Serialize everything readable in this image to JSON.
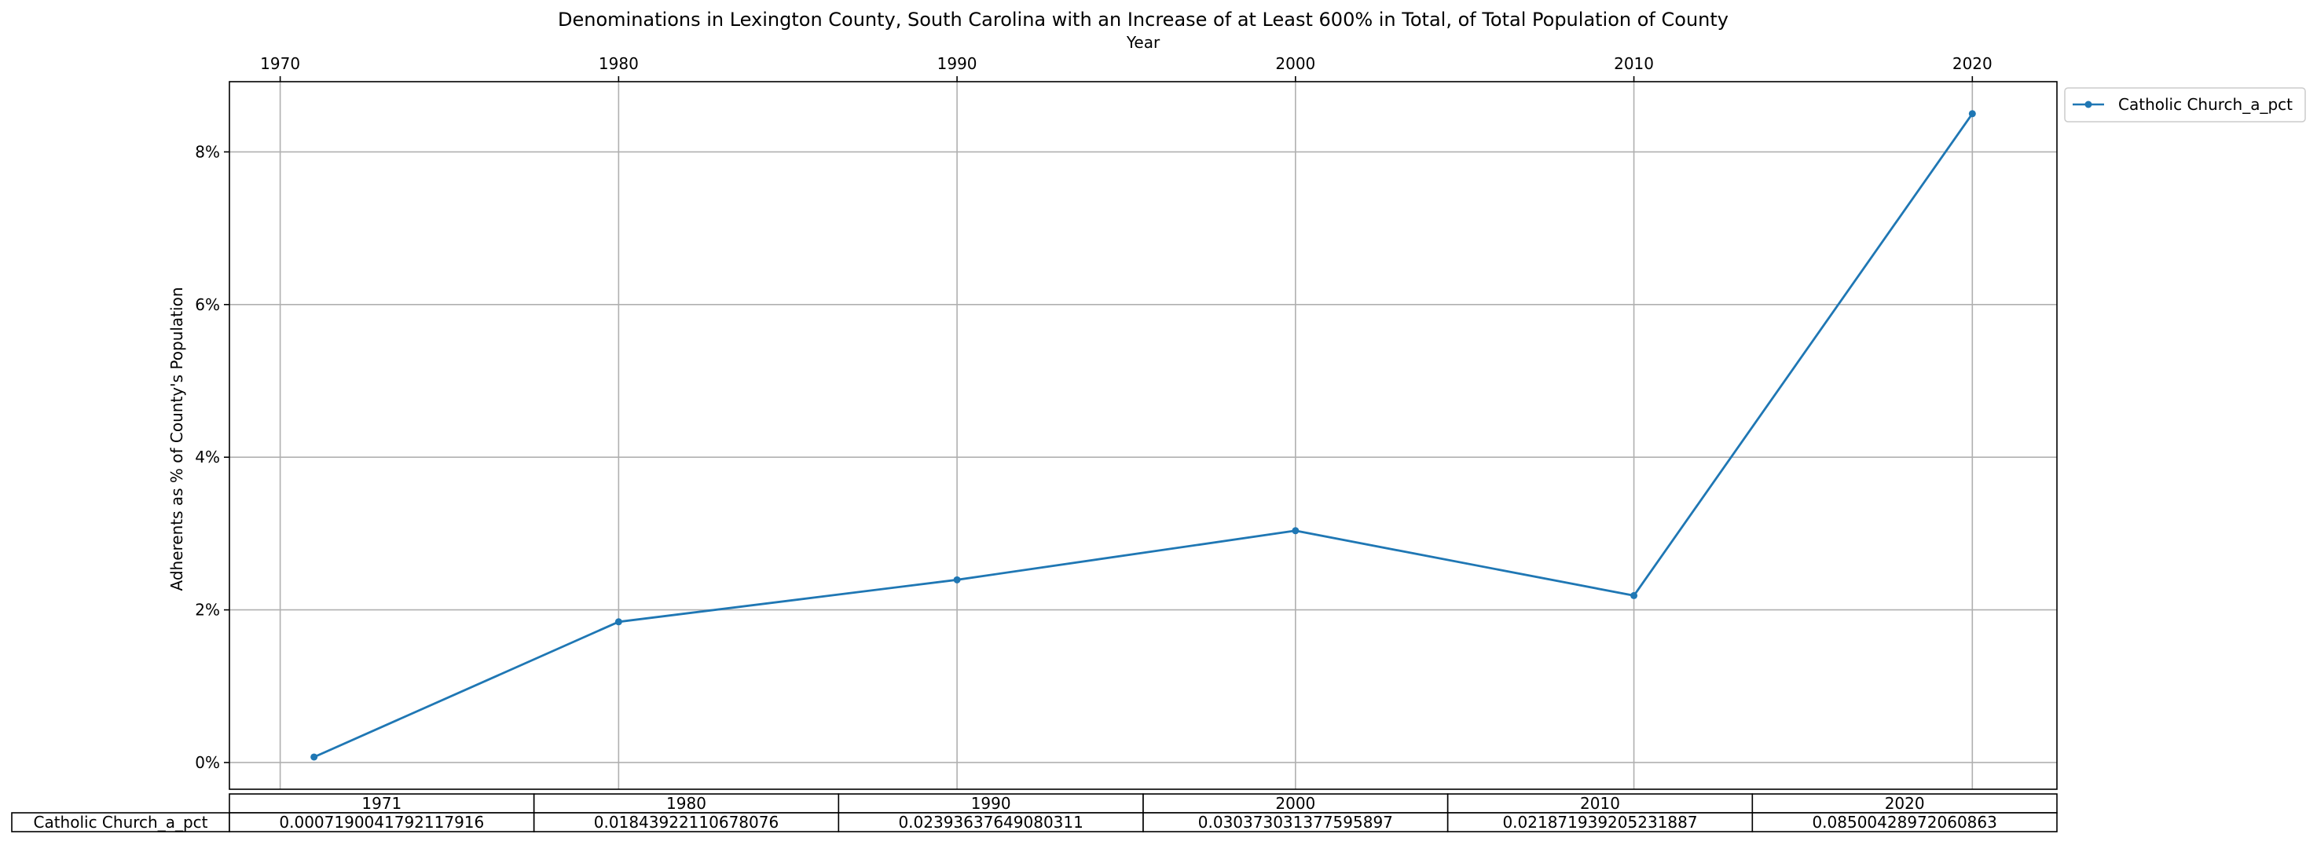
{
  "chart_data": {
    "type": "line",
    "title": "Denominations in Lexington County, South Carolina with an Increase of at Least 600% in Total, of Total Population of County",
    "xlabel": "Year",
    "ylabel": "Adherents as % of County's Population",
    "x_ticks": [
      1970,
      1980,
      1990,
      2000,
      2010,
      2020
    ],
    "x_tick_labels": [
      "1970",
      "1980",
      "1990",
      "2000",
      "2010",
      "2020"
    ],
    "xlim": [
      1968.5,
      2022.5
    ],
    "y_ticks": [
      0,
      0.02,
      0.04,
      0.06,
      0.08
    ],
    "y_tick_labels": [
      "0%",
      "2%",
      "4%",
      "6%",
      "8%"
    ],
    "ylim": [
      -0.0035,
      0.0892
    ],
    "grid": true,
    "legend_position": "outside-top-right",
    "color": "#1f77b4",
    "series": [
      {
        "name": "Catholic Church_a_pct",
        "x": [
          1971,
          1980,
          1990,
          2000,
          2010,
          2020
        ],
        "values": [
          0.0007190041792117916,
          0.01843922110678076,
          0.02393637649080311,
          0.030373031377595897,
          0.021871939205231887,
          0.08500428972060863
        ]
      }
    ],
    "table": {
      "columns": [
        "1971",
        "1980",
        "1990",
        "2000",
        "2010",
        "2020"
      ],
      "rows": [
        {
          "label": "Catholic Church_a_pct",
          "cells": [
            "0.0007190041792117916",
            "0.01843922110678076",
            "0.02393637649080311",
            "0.030373031377595897",
            "0.021871939205231887",
            "0.08500428972060863"
          ]
        }
      ]
    }
  }
}
